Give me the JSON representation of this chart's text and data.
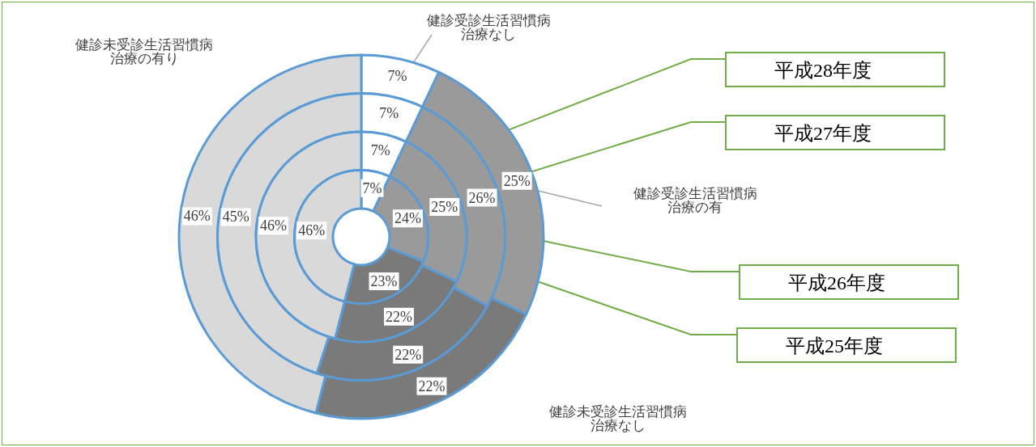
{
  "chart_data": {
    "type": "donut",
    "categories": [
      "健診受診生活習慣病治療なし",
      "健診受診生活習慣病治療の有",
      "健診未受診生活習慣病治療なし",
      "健診未受診生活習慣病治療の有り"
    ],
    "colors": [
      "#ffffff",
      "#9a9a9a",
      "#7a7a7a",
      "#d9d9d9"
    ],
    "series": [
      {
        "name": "平成28年度",
        "values": [
          7,
          25,
          22,
          46
        ],
        "value_labels": [
          "7%",
          "25%",
          "22%",
          "46%"
        ]
      },
      {
        "name": "平成27年度",
        "values": [
          7,
          26,
          22,
          45
        ],
        "value_labels": [
          "7%",
          "26%",
          "22%",
          "45%"
        ]
      },
      {
        "name": "平成26年度",
        "values": [
          7,
          25,
          22,
          46
        ],
        "value_labels": [
          "7%",
          "25%",
          "22%",
          "46%"
        ]
      },
      {
        "name": "平成25年度",
        "values": [
          7,
          24,
          23,
          46
        ],
        "value_labels": [
          "7%",
          "24%",
          "23%",
          "46%"
        ]
      }
    ],
    "legend": false
  }
}
